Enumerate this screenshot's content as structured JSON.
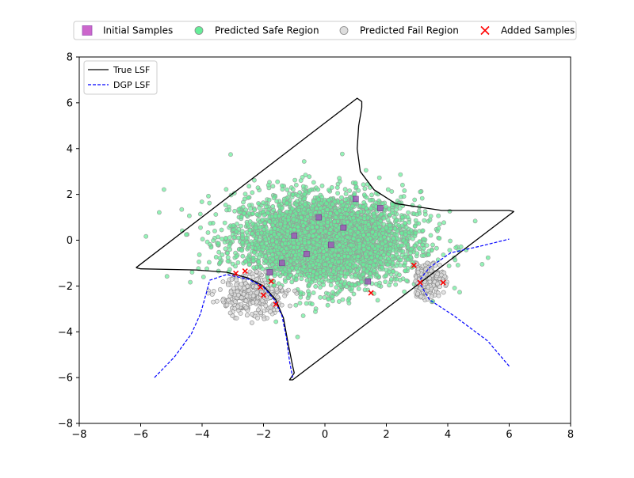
{
  "chart_data": {
    "type": "scatter",
    "title": "",
    "xlabel": "",
    "ylabel": "",
    "xlim": [
      -8,
      8
    ],
    "ylim": [
      -8,
      8
    ],
    "xticks": [
      -8,
      -6,
      -4,
      -2,
      0,
      2,
      4,
      6,
      8
    ],
    "yticks": [
      -8,
      -6,
      -4,
      -2,
      0,
      2,
      4,
      6,
      8
    ],
    "xtick_labels": [
      "−8",
      "−6",
      "−4",
      "−2",
      "0",
      "2",
      "4",
      "6",
      "8"
    ],
    "ytick_labels": [
      "−8",
      "−6",
      "−4",
      "−2",
      "0",
      "2",
      "4",
      "6",
      "8"
    ],
    "grid": false,
    "top_legend": {
      "placement": "above-plot",
      "entries": [
        {
          "label": "Initial Samples",
          "color": "#cc66cc",
          "marker": "square"
        },
        {
          "label": "Predicted Safe Region",
          "color": "#66ee99",
          "marker": "circle"
        },
        {
          "label": "Predicted Fail Region",
          "color": "#dddddd",
          "marker": "circle"
        },
        {
          "label": "Added Samples",
          "color": "#ff0000",
          "marker": "x"
        }
      ]
    },
    "inner_legend": {
      "placement": "top-left",
      "entries": [
        {
          "label": "True LSF",
          "color": "#000000",
          "style": "solid"
        },
        {
          "label": "DGP LSF",
          "color": "#0000ff",
          "style": "dashed"
        }
      ]
    },
    "series": [
      {
        "name": "Initial Samples",
        "kind": "scatter",
        "marker": "square",
        "color": "#9b59b6",
        "points": [
          [
            1.0,
            1.8
          ],
          [
            1.8,
            1.4
          ],
          [
            -0.2,
            1.0
          ],
          [
            0.6,
            0.55
          ],
          [
            -1.0,
            0.2
          ],
          [
            0.2,
            -0.2
          ],
          [
            -0.6,
            -0.6
          ],
          [
            -1.4,
            -1.0
          ],
          [
            -1.8,
            -1.4
          ],
          [
            1.4,
            -1.8
          ]
        ]
      },
      {
        "name": "Added Samples",
        "kind": "scatter",
        "marker": "x",
        "color": "#ff0000",
        "points": [
          [
            -2.9,
            -1.45
          ],
          [
            -2.6,
            -1.35
          ],
          [
            -2.1,
            -2.05
          ],
          [
            -2.0,
            -2.4
          ],
          [
            -1.75,
            -1.8
          ],
          [
            -1.6,
            -2.8
          ],
          [
            1.5,
            -2.3
          ],
          [
            2.9,
            -1.1
          ],
          [
            3.1,
            -1.85
          ],
          [
            3.85,
            -1.85
          ]
        ]
      },
      {
        "name": "Predicted Safe Region",
        "kind": "scatter-cloud",
        "color": "#66ee99",
        "edge_color": "#999999",
        "center": [
          0,
          0
        ],
        "std": [
          1.55,
          1.05
        ],
        "approx_count": 10000
      },
      {
        "name": "Predicted Fail Region",
        "kind": "scatter-cloud",
        "color": "#dddddd",
        "edge_color": "#888888",
        "clusters": [
          {
            "center": [
              -2.4,
              -2.5
            ],
            "extent": [
              -3.6,
              -3.8,
              -1.3,
              -1.5
            ]
          },
          {
            "center": [
              3.3,
              -1.7
            ],
            "extent": [
              2.7,
              -3.3,
              4.2,
              -0.8
            ]
          }
        ]
      },
      {
        "name": "True LSF",
        "kind": "line",
        "color": "#000000",
        "style": "solid",
        "path": [
          [
            -6.15,
            -1.2
          ],
          [
            -6.0,
            -1.25
          ],
          [
            -4.2,
            -1.3
          ],
          [
            -3.2,
            -1.4
          ],
          [
            -2.5,
            -1.65
          ],
          [
            -2.0,
            -2.0
          ],
          [
            -1.6,
            -2.6
          ],
          [
            -1.35,
            -3.4
          ],
          [
            -1.2,
            -4.5
          ],
          [
            -1.05,
            -5.5
          ],
          [
            -1.0,
            -5.8
          ],
          [
            -1.15,
            -6.1
          ],
          [
            -1.05,
            -6.1
          ],
          [
            6.15,
            1.25
          ],
          [
            6.0,
            1.3
          ],
          [
            3.8,
            1.3
          ],
          [
            2.3,
            1.6
          ],
          [
            1.6,
            2.2
          ],
          [
            1.15,
            3.0
          ],
          [
            1.05,
            4.0
          ],
          [
            1.1,
            5.0
          ],
          [
            1.2,
            5.8
          ],
          [
            1.2,
            6.05
          ],
          [
            1.05,
            6.2
          ],
          [
            -6.15,
            -1.2
          ]
        ]
      },
      {
        "name": "DGP LSF",
        "kind": "line",
        "color": "#0000ff",
        "style": "dashed",
        "segments": [
          [
            [
              -5.55,
              -6.0
            ],
            [
              -4.9,
              -5.1
            ],
            [
              -4.35,
              -4.1
            ],
            [
              -4.05,
              -3.2
            ],
            [
              -3.85,
              -2.25
            ],
            [
              -3.75,
              -1.75
            ],
            [
              -3.2,
              -1.5
            ],
            [
              -2.5,
              -1.7
            ],
            [
              -2.0,
              -2.05
            ],
            [
              -1.65,
              -2.6
            ],
            [
              -1.4,
              -3.3
            ],
            [
              -1.25,
              -4.3
            ],
            [
              -1.15,
              -5.3
            ],
            [
              -1.05,
              -6.0
            ]
          ],
          [
            [
              6.0,
              -5.5
            ],
            [
              5.3,
              -4.4
            ],
            [
              4.2,
              -3.3
            ],
            [
              3.4,
              -2.6
            ],
            [
              3.05,
              -1.8
            ],
            [
              3.4,
              -1.2
            ],
            [
              4.1,
              -0.55
            ],
            [
              5.1,
              -0.25
            ],
            [
              6.0,
              0.05
            ]
          ]
        ]
      }
    ]
  }
}
